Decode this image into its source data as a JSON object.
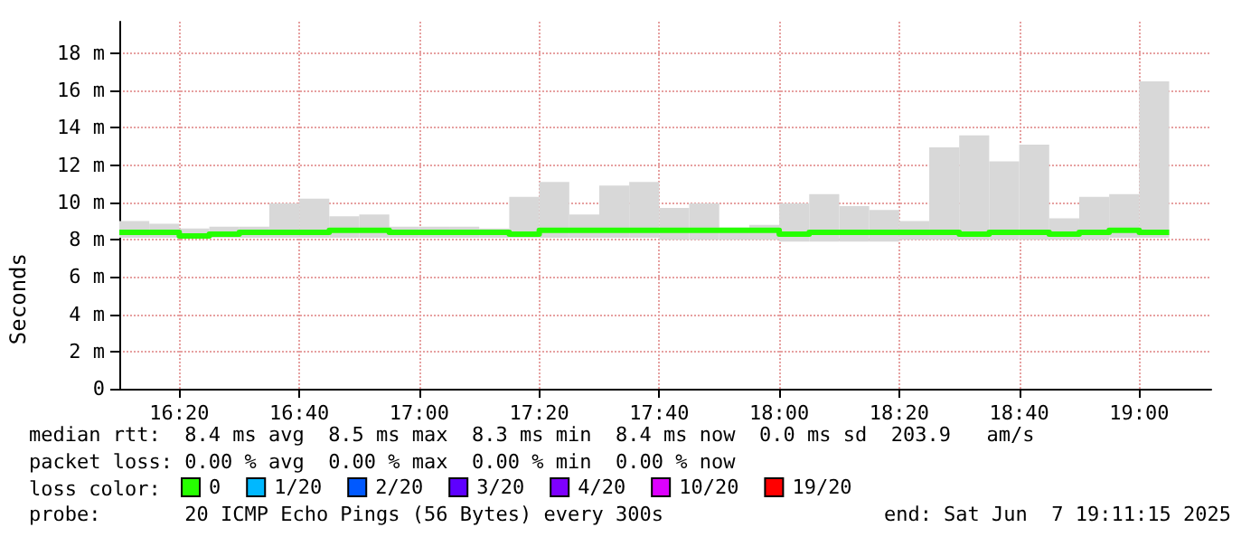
{
  "chart_data": {
    "type": "step",
    "ylabel": "Seconds",
    "legend_title": "loss color:",
    "legend": "bottom",
    "grid": true,
    "x": [
      16.1667,
      16.25,
      16.3333,
      16.4167,
      16.5,
      16.5833,
      16.6667,
      16.75,
      16.8333,
      16.9167,
      17,
      17.0833,
      17.1667,
      17.25,
      17.3333,
      17.4167,
      17.5,
      17.5833,
      17.6667,
      17.75,
      17.8333,
      17.9167,
      18,
      18.0833,
      18.1667,
      18.25,
      18.3333,
      18.4167,
      18.5,
      18.5833,
      18.6667,
      18.75,
      18.8333,
      18.9167,
      19,
      19.0833
    ],
    "xlim": [
      16.1667,
      19.2
    ],
    "xticks": [
      {
        "value": 16.3333,
        "label": "16:20"
      },
      {
        "value": 16.6667,
        "label": "16:40"
      },
      {
        "value": 17,
        "label": "17:00"
      },
      {
        "value": 17.3333,
        "label": "17:20"
      },
      {
        "value": 17.6667,
        "label": "17:40"
      },
      {
        "value": 18,
        "label": "18:00"
      },
      {
        "value": 18.3333,
        "label": "18:20"
      },
      {
        "value": 18.6667,
        "label": "18:40"
      },
      {
        "value": 19,
        "label": "19:00"
      }
    ],
    "ylim": [
      0,
      19.7
    ],
    "yticks": [
      0,
      {
        "value": 2,
        "label": "2 m"
      },
      {
        "value": 4,
        "label": "4 m"
      },
      {
        "value": 6,
        "label": "6 m"
      },
      {
        "value": 8,
        "label": "8 m"
      },
      {
        "value": 10,
        "label": "10 m"
      },
      {
        "value": 12,
        "label": "12 m"
      },
      {
        "value": 14,
        "label": "14 m"
      },
      {
        "value": 16,
        "label": "16 m"
      },
      {
        "value": 18,
        "label": "18 m"
      }
    ],
    "series": [
      {
        "name": "0",
        "color": "#26ff00",
        "values": [
          8.4,
          8.4,
          8.2,
          8.3,
          8.4,
          8.4,
          8.4,
          8.5,
          8.5,
          8.4,
          8.4,
          8.4,
          8.4,
          8.3,
          8.5,
          8.5,
          8.5,
          8.5,
          8.5,
          8.5,
          8.5,
          8.5,
          8.3,
          8.4,
          8.4,
          8.4,
          8.4,
          8.4,
          8.3,
          8.4,
          8.4,
          8.3,
          8.4,
          8.5,
          8.4,
          8.4
        ],
        "lower": [
          8.1,
          8.1,
          8.1,
          8.1,
          8.1,
          8.1,
          8.1,
          8.1,
          8.1,
          8.1,
          8.1,
          8.1,
          8.1,
          8.1,
          8.1,
          8.1,
          8.1,
          8.1,
          8.0,
          8.0,
          8.0,
          8.0,
          7.9,
          7.9,
          7.9,
          7.9,
          8.0,
          8.0,
          8.0,
          8.0,
          8.0,
          8.0,
          8.0,
          8.1,
          8.1,
          8.1
        ],
        "upper": [
          9.0,
          8.85,
          8.6,
          8.7,
          8.7,
          9.95,
          10.2,
          9.25,
          9.35,
          8.7,
          8.7,
          8.7,
          8.6,
          10.3,
          11.1,
          9.35,
          10.9,
          11.1,
          9.7,
          9.95,
          8.65,
          8.8,
          9.95,
          10.45,
          9.8,
          9.6,
          9.0,
          12.95,
          13.6,
          12.2,
          13.1,
          9.15,
          10.3,
          10.45,
          16.5,
          16.5
        ]
      },
      {
        "name": "1/20",
        "color": "#00b8ff",
        "values": [
          null,
          null,
          null,
          null,
          null,
          null,
          null,
          null,
          null,
          null,
          null,
          null,
          null,
          null,
          null,
          null,
          null,
          null,
          null,
          null,
          null,
          null,
          null,
          null,
          null,
          null,
          null,
          null,
          null,
          null,
          null,
          null,
          null,
          null,
          null,
          null
        ]
      },
      {
        "name": "2/20",
        "color": "#0059ff",
        "values": [
          null,
          null,
          null,
          null,
          null,
          null,
          null,
          null,
          null,
          null,
          null,
          null,
          null,
          null,
          null,
          null,
          null,
          null,
          null,
          null,
          null,
          null,
          null,
          null,
          null,
          null,
          null,
          null,
          null,
          null,
          null,
          null,
          null,
          null,
          null,
          null
        ]
      },
      {
        "name": "3/20",
        "color": "#5e00ff",
        "values": [
          null,
          null,
          null,
          null,
          null,
          null,
          null,
          null,
          null,
          null,
          null,
          null,
          null,
          null,
          null,
          null,
          null,
          null,
          null,
          null,
          null,
          null,
          null,
          null,
          null,
          null,
          null,
          null,
          null,
          null,
          null,
          null,
          null,
          null,
          null,
          null
        ]
      },
      {
        "name": "4/20",
        "color": "#7e00ff",
        "values": [
          null,
          null,
          null,
          null,
          null,
          null,
          null,
          null,
          null,
          null,
          null,
          null,
          null,
          null,
          null,
          null,
          null,
          null,
          null,
          null,
          null,
          null,
          null,
          null,
          null,
          null,
          null,
          null,
          null,
          null,
          null,
          null,
          null,
          null,
          null,
          null
        ]
      },
      {
        "name": "10/20",
        "color": "#dd00ff",
        "values": [
          null,
          null,
          null,
          null,
          null,
          null,
          null,
          null,
          null,
          null,
          null,
          null,
          null,
          null,
          null,
          null,
          null,
          null,
          null,
          null,
          null,
          null,
          null,
          null,
          null,
          null,
          null,
          null,
          null,
          null,
          null,
          null,
          null,
          null,
          null,
          null
        ]
      },
      {
        "name": "19/20",
        "color": "#ff0000",
        "values": [
          null,
          null,
          null,
          null,
          null,
          null,
          null,
          null,
          null,
          null,
          null,
          null,
          null,
          null,
          null,
          null,
          null,
          null,
          null,
          null,
          null,
          null,
          null,
          null,
          null,
          null,
          null,
          null,
          null,
          null,
          null,
          null,
          null,
          null,
          null,
          null
        ]
      }
    ],
    "annotations": [
      "median rtt:  8.4 ms avg  8.5 ms max  8.3 ms min  8.4 ms now  0.0 ms sd  203.9   am/s",
      "packet loss: 0.00 % avg  0.00 % max  0.00 % min  0.00 % now",
      "probe:       20 ICMP Echo Pings (56 Bytes) every 300s",
      "end: Sat Jun  7 19:11:15 2025"
    ]
  }
}
